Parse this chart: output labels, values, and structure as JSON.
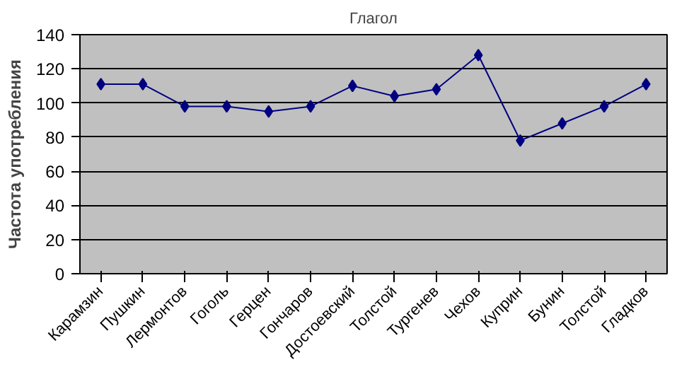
{
  "chart_data": {
    "type": "line",
    "title": "Глагол",
    "ylabel": "Частота употребления",
    "categories": [
      "Карамзин",
      "Пушкин",
      "Лермонтов",
      "Гоголь",
      "Герцен",
      "Гончаров",
      "Достоевский",
      "Толстой",
      "Тургенев",
      "Чехов",
      "Куприн",
      "Бунин",
      "Толстой",
      "Гладков"
    ],
    "series": [
      {
        "color": "#000080",
        "values": [
          111,
          111,
          98,
          98,
          95,
          98,
          110,
          104,
          108,
          128,
          78,
          88,
          98,
          111
        ]
      }
    ],
    "ylim": [
      0,
      140
    ],
    "yticks": [
      0,
      20,
      40,
      60,
      80,
      100,
      120,
      140
    ],
    "grid": "y",
    "marker": "diamond",
    "line_style": "solid"
  }
}
